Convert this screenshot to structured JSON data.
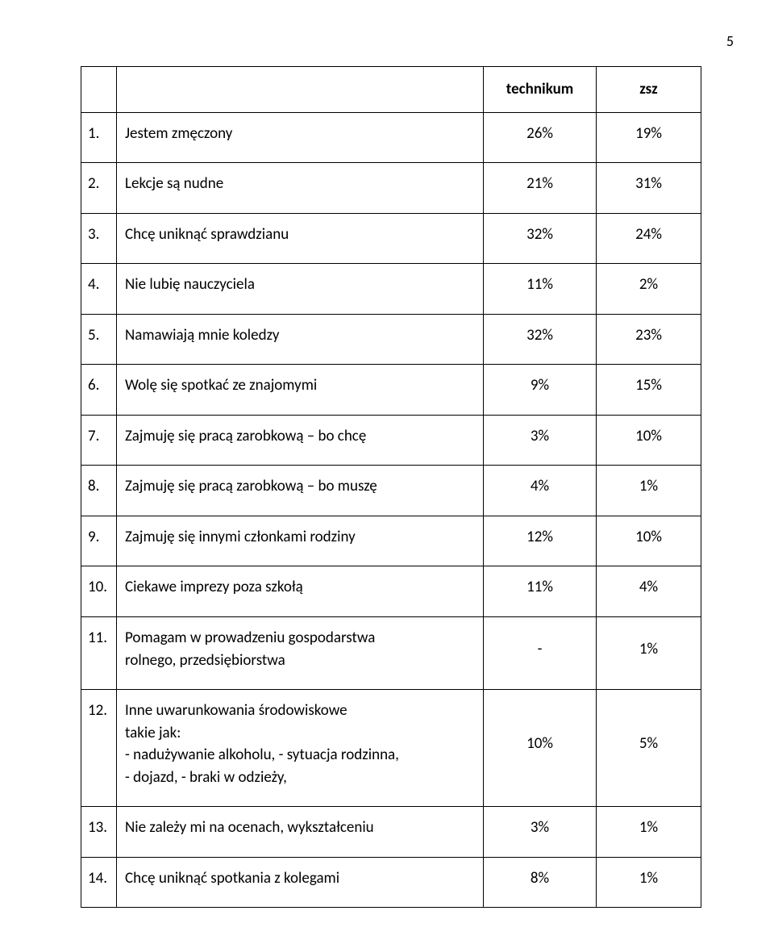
{
  "page_number": "5",
  "table": {
    "headers": {
      "num": "",
      "label": "",
      "col1": "technikum",
      "col2": "zsz"
    },
    "rows": [
      {
        "num": "1.",
        "label": "Jestem zmęczony",
        "v1": "26%",
        "v2": "19%"
      },
      {
        "num": "2.",
        "label": "Lekcje są nudne",
        "v1": "21%",
        "v2": "31%"
      },
      {
        "num": "3.",
        "label": "Chcę uniknąć sprawdzianu",
        "v1": "32%",
        "v2": "24%"
      },
      {
        "num": "4.",
        "label": "Nie lubię nauczyciela",
        "v1": "11%",
        "v2": "2%"
      },
      {
        "num": "5.",
        "label": "Namawiają mnie koledzy",
        "v1": "32%",
        "v2": "23%"
      },
      {
        "num": "6.",
        "label": "Wolę się spotkać ze znajomymi",
        "v1": "9%",
        "v2": "15%"
      },
      {
        "num": "7.",
        "label": "Zajmuję się pracą zarobkową – bo chcę",
        "v1": "3%",
        "v2": "10%"
      },
      {
        "num": "8.",
        "label": "Zajmuję się pracą zarobkową – bo muszę",
        "v1": "4%",
        "v2": "1%"
      },
      {
        "num": "9.",
        "label": "Zajmuję się innymi członkami rodziny",
        "v1": "12%",
        "v2": "10%"
      },
      {
        "num": "10.",
        "label": "Ciekawe imprezy poza szkołą",
        "v1": "11%",
        "v2": "4%"
      },
      {
        "num": "11.",
        "label": "Pomagam w prowadzeniu gospodarstwa",
        "label2": "rolnego, przedsiębiorstwa",
        "v1": "-",
        "v2": "1%"
      },
      {
        "num": "12.",
        "label": "Inne uwarunkowania środowiskowe",
        "label2": "takie jak:",
        "label3": "- nadużywanie alkoholu, - sytuacja rodzinna,",
        "label4": "- dojazd, - braki w odzieży,",
        "v1": "10%",
        "v2": "5%"
      },
      {
        "num": "13.",
        "label": "Nie zależy mi na ocenach, wykształceniu",
        "v1": "3%",
        "v2": "1%"
      },
      {
        "num": "14.",
        "label": "Chcę uniknąć spotkania z kolegami",
        "v1": "8%",
        "v2": "1%"
      }
    ]
  }
}
